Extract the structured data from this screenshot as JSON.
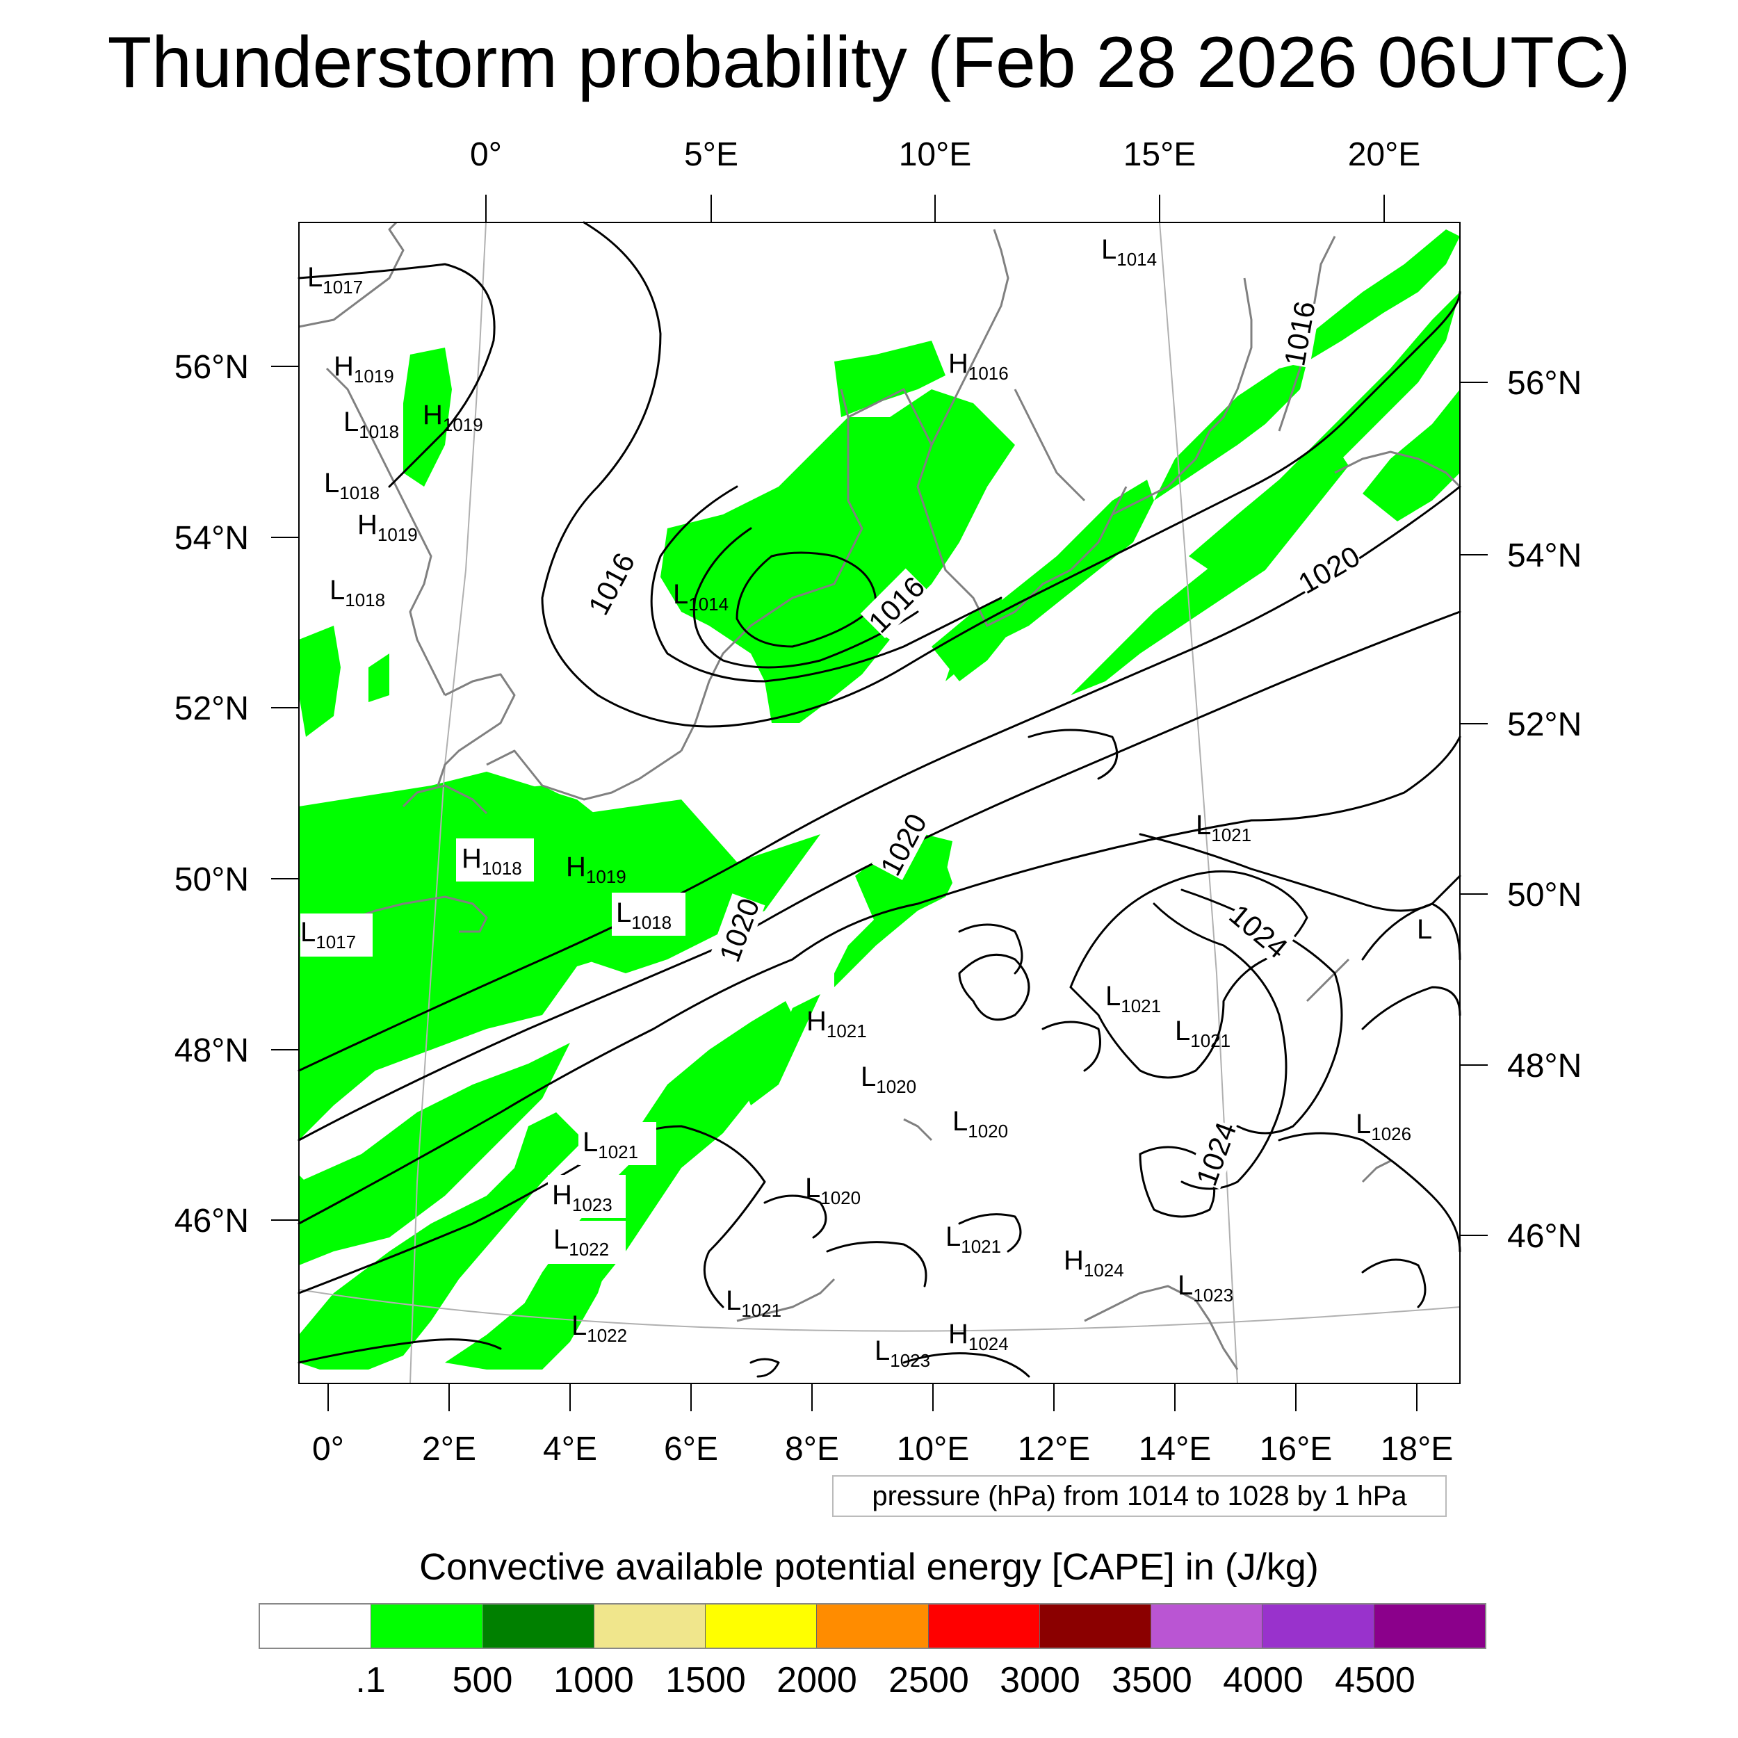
{
  "title": "Thunderstorm probability (Feb 28 2026 06UTC)",
  "map": {
    "top_lon_labels": [
      "0°",
      "5°E",
      "10°E",
      "15°E",
      "20°E"
    ],
    "bottom_lon_labels": [
      "0°",
      "2°E",
      "4°E",
      "6°E",
      "8°E",
      "10°E",
      "12°E",
      "14°E",
      "16°E",
      "18°E"
    ],
    "left_lat_labels": [
      "56°N",
      "54°N",
      "52°N",
      "50°N",
      "48°N",
      "46°N"
    ],
    "right_lat_labels": [
      "56°N",
      "54°N",
      "52°N",
      "50°N",
      "48°N",
      "46°N"
    ],
    "pressure_centers": [
      {
        "type": "L",
        "value": "1017"
      },
      {
        "type": "L",
        "value": "1014"
      },
      {
        "type": "H",
        "value": "1019"
      },
      {
        "type": "H",
        "value": "1016"
      },
      {
        "type": "L",
        "value": "1018"
      },
      {
        "type": "H",
        "value": "1019"
      },
      {
        "type": "L",
        "value": "1018"
      },
      {
        "type": "H",
        "value": "1019"
      },
      {
        "type": "L",
        "value": "1018"
      },
      {
        "type": "L",
        "value": "1014"
      },
      {
        "type": "H",
        "value": "1018"
      },
      {
        "type": "H",
        "value": "1019"
      },
      {
        "type": "L",
        "value": "1018"
      },
      {
        "type": "L",
        "value": "1017"
      },
      {
        "type": "L",
        "value": "1021"
      },
      {
        "type": "L",
        "value": "1021"
      },
      {
        "type": "L",
        "value": "1021"
      },
      {
        "type": "H",
        "value": "1021"
      },
      {
        "type": "L",
        "value": "1020"
      },
      {
        "type": "L",
        "value": "1020"
      },
      {
        "type": "L",
        "value": "1026"
      },
      {
        "type": "L",
        "value": "1021"
      },
      {
        "type": "H",
        "value": "1023"
      },
      {
        "type": "L",
        "value": "1020"
      },
      {
        "type": "L",
        "value": "1022"
      },
      {
        "type": "L",
        "value": "1021"
      },
      {
        "type": "H",
        "value": "1024"
      },
      {
        "type": "L",
        "value": "1023"
      },
      {
        "type": "L",
        "value": "1021"
      },
      {
        "type": "L",
        "value": "1022"
      },
      {
        "type": "H",
        "value": "1024"
      },
      {
        "type": "L",
        "value": "1023"
      },
      {
        "type": "L",
        "value": ""
      }
    ],
    "contour_labels": [
      "1016",
      "1016",
      "1016",
      "1020",
      "1020",
      "1020",
      "1024",
      "1024"
    ],
    "colors": {
      "cape_fill": "#00ff00",
      "isobar": "#000000",
      "coastline": "#808080",
      "grid": "#b0b0b0"
    }
  },
  "pressure_info": "pressure (hPa) from 1014 to 1028 by 1 hPa",
  "colorbar": {
    "title": "Convective available potential energy [CAPE] in (J/kg)",
    "colors": [
      "#ffffff",
      "#00ff00",
      "#008000",
      "#f0e68c",
      "#ffff00",
      "#ff8c00",
      "#ff0000",
      "#8b0000",
      "#ba55d3",
      "#9932cc",
      "#8b008b"
    ],
    "labels": [
      ".1",
      "500",
      "1000",
      "1500",
      "2000",
      "2500",
      "3000",
      "3500",
      "4000",
      "4500"
    ]
  }
}
